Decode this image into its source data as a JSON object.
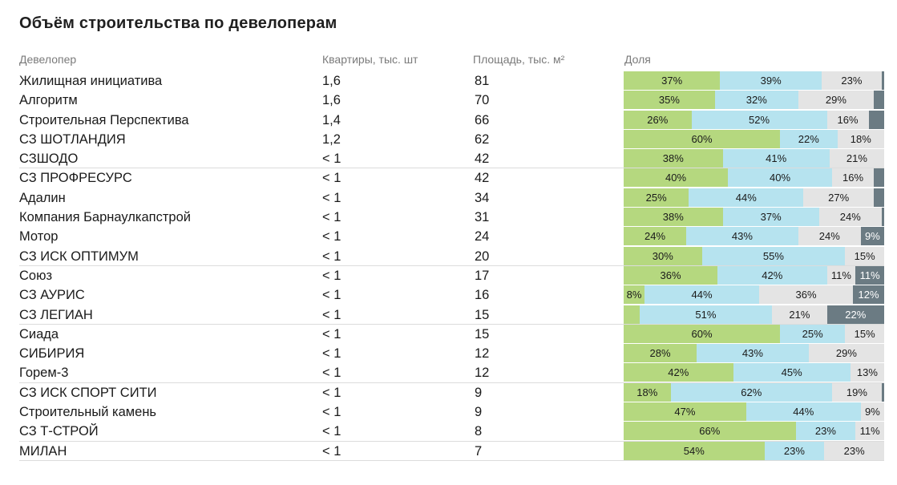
{
  "title": "Объём строительства по девелоперам",
  "headers": {
    "developer": "Девелопер",
    "apartments": "Квартиры, тыс. шт",
    "area": "Площадь, тыс. м²",
    "share": "Доля"
  },
  "colors": {
    "s1": "#b5d87f",
    "s2": "#b6e3ef",
    "s3": "#e4e4e4",
    "s4": "#6b7b83"
  },
  "chart_data": {
    "type": "table",
    "columns": [
      "Девелопер",
      "Квартиры, тыс. шт",
      "Площадь, тыс. м²",
      "Доля"
    ],
    "rows": [
      {
        "name": "Жилищная инициатива",
        "apartments": "1,6",
        "area": "81",
        "shares": [
          37,
          39,
          23,
          1
        ],
        "labels": [
          "37%",
          "39%",
          "23%",
          ""
        ]
      },
      {
        "name": "Алгоритм",
        "apartments": "1,6",
        "area": "70",
        "shares": [
          35,
          32,
          29,
          4
        ],
        "labels": [
          "35%",
          "32%",
          "29%",
          ""
        ]
      },
      {
        "name": "Строительная Перспектива",
        "apartments": "1,4",
        "area": "66",
        "shares": [
          26,
          52,
          16,
          6
        ],
        "labels": [
          "26%",
          "52%",
          "16%",
          ""
        ]
      },
      {
        "name": "СЗ ШОТЛАНДИЯ",
        "apartments": "1,2",
        "area": "62",
        "shares": [
          60,
          22,
          18,
          0
        ],
        "labels": [
          "60%",
          "22%",
          "18%",
          ""
        ]
      },
      {
        "name": "СЗШОДО",
        "apartments": "< 1",
        "area": "42",
        "shares": [
          38,
          41,
          21,
          0
        ],
        "labels": [
          "38%",
          "41%",
          "21%",
          ""
        ]
      },
      {
        "name": "СЗ ПРОФРЕСУРС",
        "apartments": "< 1",
        "area": "42",
        "shares": [
          40,
          40,
          16,
          4
        ],
        "labels": [
          "40%",
          "40%",
          "16%",
          ""
        ]
      },
      {
        "name": "Адалин",
        "apartments": "< 1",
        "area": "34",
        "shares": [
          25,
          44,
          27,
          4
        ],
        "labels": [
          "25%",
          "44%",
          "27%",
          ""
        ]
      },
      {
        "name": "Компания Барнаулкапстрой",
        "apartments": "< 1",
        "area": "31",
        "shares": [
          38,
          37,
          24,
          1
        ],
        "labels": [
          "38%",
          "37%",
          "24%",
          ""
        ]
      },
      {
        "name": "Мотор",
        "apartments": "< 1",
        "area": "24",
        "shares": [
          24,
          43,
          24,
          9
        ],
        "labels": [
          "24%",
          "43%",
          "24%",
          "9%"
        ]
      },
      {
        "name": "СЗ ИСК ОПТИМУМ",
        "apartments": "< 1",
        "area": "20",
        "shares": [
          30,
          55,
          15,
          0
        ],
        "labels": [
          "30%",
          "55%",
          "15%",
          ""
        ]
      },
      {
        "name": "Союз",
        "apartments": "< 1",
        "area": "17",
        "shares": [
          36,
          42,
          11,
          11
        ],
        "labels": [
          "36%",
          "42%",
          "11%",
          "11%"
        ]
      },
      {
        "name": "СЗ АУРИС",
        "apartments": "< 1",
        "area": "16",
        "shares": [
          8,
          44,
          36,
          12
        ],
        "labels": [
          "8%",
          "44%",
          "36%",
          "12%"
        ]
      },
      {
        "name": "СЗ ЛЕГИАН",
        "apartments": "< 1",
        "area": "15",
        "shares": [
          6,
          51,
          21,
          22
        ],
        "labels": [
          "",
          "51%",
          "21%",
          "22%"
        ]
      },
      {
        "name": "Сиада",
        "apartments": "< 1",
        "area": "15",
        "shares": [
          60,
          25,
          15,
          0
        ],
        "labels": [
          "60%",
          "25%",
          "15%",
          ""
        ]
      },
      {
        "name": "СИБИРИЯ",
        "apartments": "< 1",
        "area": "12",
        "shares": [
          28,
          43,
          29,
          0
        ],
        "labels": [
          "28%",
          "43%",
          "29%",
          ""
        ]
      },
      {
        "name": "Горем-3",
        "apartments": "< 1",
        "area": "12",
        "shares": [
          42,
          45,
          13,
          0
        ],
        "labels": [
          "42%",
          "45%",
          "13%",
          ""
        ]
      },
      {
        "name": "СЗ ИСК СПОРТ СИТИ",
        "apartments": "< 1",
        "area": "9",
        "shares": [
          18,
          62,
          19,
          1
        ],
        "labels": [
          "18%",
          "62%",
          "19%",
          ""
        ]
      },
      {
        "name": "Строительный камень",
        "apartments": "< 1",
        "area": "9",
        "shares": [
          47,
          44,
          9,
          0
        ],
        "labels": [
          "47%",
          "44%",
          "9%",
          ""
        ]
      },
      {
        "name": "СЗ Т-СТРОЙ",
        "apartments": "< 1",
        "area": "8",
        "shares": [
          66,
          23,
          11,
          0
        ],
        "labels": [
          "66%",
          "23%",
          "11%",
          ""
        ]
      },
      {
        "name": "МИЛАН",
        "apartments": "< 1",
        "area": "7",
        "shares": [
          54,
          23,
          23,
          0
        ],
        "labels": [
          "54%",
          "23%",
          "23%",
          ""
        ]
      }
    ]
  }
}
